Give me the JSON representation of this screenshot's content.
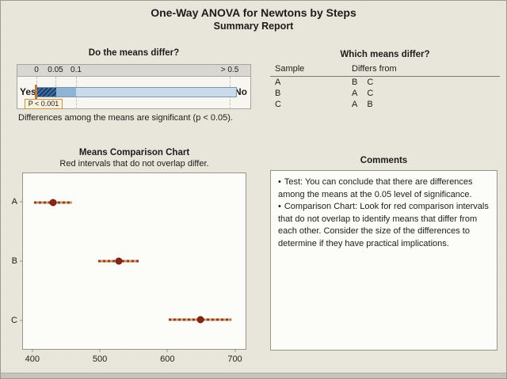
{
  "report": {
    "title": "One-Way ANOVA for Newtons by Steps",
    "subtitle": "Summary Report"
  },
  "significance": {
    "title": "Do the means differ?",
    "scale_labels": [
      "0",
      "0.05",
      "0.1",
      "> 0.5"
    ],
    "yes_label": "Yes",
    "no_label": "No",
    "p_label": "P < 0.001",
    "caption": "Differences among the means are significant (p < 0.05)."
  },
  "differ_table": {
    "title": "Which means differ?",
    "col_sample": "Sample",
    "col_differs": "Differs from",
    "rows": [
      {
        "sample": "A",
        "differs_from": [
          "B",
          "C"
        ]
      },
      {
        "sample": "B",
        "differs_from": [
          "A",
          "C"
        ]
      },
      {
        "sample": "C",
        "differs_from": [
          "A",
          "B"
        ]
      }
    ]
  },
  "means_chart": {
    "title": "Means Comparison Chart",
    "subtitle": "Red intervals that do not overlap differ."
  },
  "comments": {
    "title": "Comments",
    "bullet_char": "•",
    "bullets": [
      "Test: You can conclude that there are differences among the means at the 0.05 level of significance.",
      "Comparison Chart: Look for red comparison intervals that do not overlap to identify means that differ from each other. Consider the size of the differences to determine if they have practical implications."
    ]
  },
  "colors": {
    "background": "#e9e6db",
    "gauge_dark_segment": "#1d3c6c",
    "gauge_mid_segment": "#8fb3d3",
    "gauge_light_segment": "#c9daea",
    "p_marker_orange": "#be7a34",
    "p_box_border": "#c99441",
    "interval_red": "#8f3a22",
    "interval_tan": "#c89a68",
    "mean_dot": "#8b2414"
  },
  "chart_data": [
    {
      "type": "bar",
      "subtype": "significance-gauge",
      "title": "Do the means differ?",
      "tick_labels": [
        "0",
        "0.05",
        "0.1",
        "> 0.5"
      ],
      "left_label": "Yes",
      "right_label": "No",
      "p_value_label": "P < 0.001",
      "p_marker_position": 0.001,
      "segments": [
        {
          "from": 0,
          "to": 0.05,
          "style": "dark-blue-hatched"
        },
        {
          "from": 0.05,
          "to": 0.1,
          "style": "medium-blue"
        },
        {
          "from": 0.1,
          "to": 0.5,
          "style": "light-blue"
        }
      ],
      "caption": "Differences among the means are significant (p < 0.05)."
    },
    {
      "type": "scatter",
      "subtype": "interval-plot",
      "orientation": "horizontal",
      "title": "Means Comparison Chart",
      "subtitle": "Red intervals that do not overlap differ.",
      "categories": [
        "A",
        "B",
        "C"
      ],
      "means": [
        430,
        528,
        650
      ],
      "intervals_95ci": [
        [
          401,
          458
        ],
        [
          497,
          558
        ],
        [
          602,
          696
        ]
      ],
      "xticks": [
        400,
        500,
        600,
        700
      ],
      "xlim": [
        385,
        717
      ],
      "grid": false
    }
  ]
}
